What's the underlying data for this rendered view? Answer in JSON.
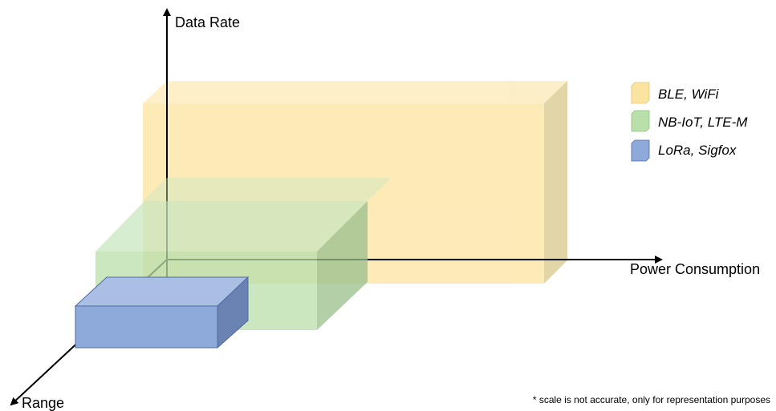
{
  "axes": {
    "y_label": "Data Rate",
    "x_label": "Power Consumption",
    "z_label": "Range"
  },
  "legend": [
    {
      "label": "BLE, WiFi",
      "color": "#fbe3a0"
    },
    {
      "label": "NB-IoT, LTE-M",
      "color": "#b9dfab"
    },
    {
      "label": "LoRa, Sigfox",
      "color": "#8eaadb"
    }
  ],
  "footnote": "* scale is not accurate, only for representation purposes",
  "colors": {
    "ble_front": "#fbe3a0",
    "ble_top": "#fceab6",
    "ble_side": "#d9c78c",
    "nb_front": "#b9dfab",
    "nb_top": "#cae7bf",
    "nb_side": "#99c08c",
    "lora_front": "#8eaadb",
    "lora_top": "#a9bfe4",
    "lora_side": "#6b83b2",
    "axis": "#000000"
  }
}
